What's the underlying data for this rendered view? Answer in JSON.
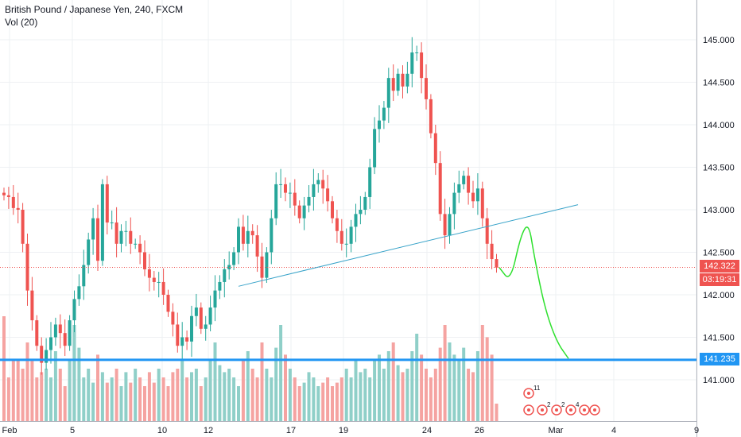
{
  "header": {
    "title": "British Pound / Japanese Yen, 240, FXCM",
    "volume_label": "Vol (20)"
  },
  "tags": {
    "last_price": "142.322",
    "countdown": "03:19:31",
    "level": "141.235"
  },
  "colors": {
    "up": "#26a69a",
    "down": "#ef5350",
    "vol_up": "#8fcfc8",
    "vol_down": "#f5a3a1",
    "trendline": "#38a3c9",
    "level": "#2196f3",
    "projection": "#2ee02e",
    "grid": "#eef0f3"
  },
  "events": [
    {
      "label": "11"
    },
    {
      "label": "2"
    },
    {
      "label": "2"
    },
    {
      "label": "4"
    }
  ],
  "chart_data": {
    "type": "candlestick",
    "title": "British Pound / Japanese Yen, 240, FXCM",
    "y_ticks": [
      141.0,
      141.5,
      142.0,
      142.5,
      143.0,
      143.5,
      144.0,
      144.5,
      145.0
    ],
    "y_tick_labels": [
      "141.000",
      "141.500",
      "142.000",
      "142.500",
      "143.000",
      "143.500",
      "144.000",
      "144.500",
      "145.000"
    ],
    "ylim": [
      140.6,
      145.3
    ],
    "x_tick_labels": [
      "Feb",
      "5",
      "10",
      "12",
      "17",
      "19",
      "24",
      "26",
      "Mar",
      "4",
      "9"
    ],
    "last_price": 142.322,
    "horizontal_level": 141.235,
    "volume_indicator": "Vol (20)",
    "grid": true,
    "closes": [
      143.17,
      143.15,
      143.02,
      143.0,
      142.6,
      142.05,
      141.7,
      141.4,
      141.2,
      141.35,
      141.5,
      141.65,
      141.55,
      141.4,
      141.7,
      141.95,
      142.1,
      142.35,
      142.65,
      142.9,
      142.4,
      143.3,
      142.85,
      142.85,
      142.6,
      142.75,
      142.75,
      142.6,
      142.6,
      142.5,
      142.3,
      142.2,
      142.15,
      142.15,
      142.0,
      141.8,
      141.65,
      141.4,
      141.5,
      141.45,
      141.75,
      141.85,
      141.6,
      141.65,
      141.85,
      142.05,
      142.15,
      142.3,
      142.35,
      142.5,
      142.8,
      142.6,
      142.75,
      142.7,
      142.45,
      142.2,
      142.5,
      142.9,
      143.3,
      143.3,
      143.2,
      143.2,
      143.05,
      142.9,
      143.05,
      143.15,
      143.3,
      143.35,
      143.25,
      143.1,
      142.9,
      142.75,
      142.6,
      142.6,
      142.8,
      142.95,
      143.0,
      143.15,
      143.5,
      143.95,
      144.05,
      144.2,
      144.55,
      144.4,
      144.6,
      144.45,
      144.6,
      144.85,
      144.85,
      144.55,
      144.3,
      143.9,
      143.55,
      142.95,
      142.7,
      142.95,
      143.2,
      143.3,
      143.4,
      143.2,
      143.1,
      143.25,
      142.9,
      142.6,
      142.42,
      142.32
    ],
    "volumes": [
      0.6,
      0.25,
      0.35,
      0.35,
      0.3,
      0.45,
      0.35,
      0.25,
      0.28,
      0.3,
      0.25,
      0.4,
      0.3,
      0.2,
      0.35,
      0.55,
      0.42,
      0.25,
      0.3,
      0.22,
      0.38,
      0.28,
      0.22,
      0.25,
      0.3,
      0.2,
      0.28,
      0.22,
      0.3,
      0.25,
      0.2,
      0.28,
      0.22,
      0.3,
      0.25,
      0.2,
      0.28,
      0.3,
      0.35,
      0.25,
      0.28,
      0.3,
      0.2,
      0.25,
      0.35,
      0.45,
      0.32,
      0.28,
      0.3,
      0.25,
      0.2,
      0.35,
      0.4,
      0.3,
      0.25,
      0.45,
      0.3,
      0.25,
      0.42,
      0.55,
      0.38,
      0.3,
      0.25,
      0.2,
      0.22,
      0.28,
      0.25,
      0.2,
      0.22,
      0.25,
      0.2,
      0.22,
      0.25,
      0.3,
      0.25,
      0.35,
      0.28,
      0.3,
      0.25,
      0.35,
      0.38,
      0.3,
      0.4,
      0.45,
      0.32,
      0.28,
      0.3,
      0.4,
      0.5,
      0.38,
      0.3,
      0.25,
      0.3,
      0.42,
      0.55,
      0.45,
      0.38,
      0.35,
      0.42,
      0.3,
      0.28,
      0.4,
      0.55,
      0.48,
      0.38,
      0.1
    ],
    "projection_path": [
      [
        142.32
      ],
      [
        142.15
      ],
      [
        142.7
      ],
      [
        142.85
      ],
      [
        142.45
      ],
      [
        141.85
      ],
      [
        141.45
      ],
      [
        141.25
      ]
    ]
  }
}
